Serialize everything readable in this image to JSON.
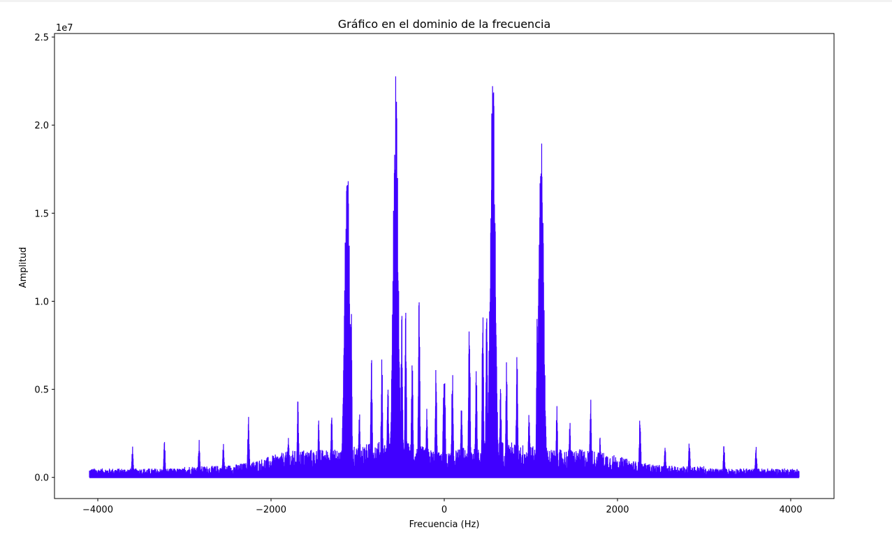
{
  "chart_data": {
    "type": "line",
    "title": "Gráfico en el dominio de la frecuencia",
    "xlabel": "Frecuencia (Hz)",
    "ylabel": "Amplitud",
    "y_offset_text": "1e7",
    "xlim": [
      -4500,
      4500
    ],
    "ylim": [
      -1200000,
      25200000
    ],
    "x_ticks": [
      -4000,
      -2000,
      0,
      2000,
      4000
    ],
    "x_tick_labels": [
      "−4000",
      "−2000",
      "0",
      "2000",
      "4000"
    ],
    "y_ticks": [
      0,
      5000000,
      10000000,
      15000000,
      20000000,
      25000000
    ],
    "y_tick_labels": [
      "0.0",
      "0.5",
      "1.0",
      "1.5",
      "2.0",
      "2.5"
    ],
    "grid": false,
    "line_color": "#4000ff",
    "x_range": [
      -4096,
      4096
    ],
    "series": [
      {
        "peaks": [
          {
            "x": 560,
            "y": 24000000
          },
          {
            "x": 1120,
            "y": 19700000
          },
          {
            "x": 1075,
            "y": 10400000
          },
          {
            "x": 290,
            "y": 10500000
          },
          {
            "x": 445,
            "y": 10000000
          },
          {
            "x": 490,
            "y": 9900000
          },
          {
            "x": 840,
            "y": 7300000
          },
          {
            "x": 720,
            "y": 6900000
          },
          {
            "x": 95,
            "y": 6600000
          },
          {
            "x": 5,
            "y": 6000000
          },
          {
            "x": 1690,
            "y": 4600000
          },
          {
            "x": 1140,
            "y": 4200000
          },
          {
            "x": 2260,
            "y": 3800000
          },
          {
            "x": 1800,
            "y": 2500000
          },
          {
            "x": 2830,
            "y": 2200000
          },
          {
            "x": 3230,
            "y": 2100000
          },
          {
            "x": 3600,
            "y": 1800000
          },
          {
            "x": 2550,
            "y": 2000000
          },
          {
            "x": 1450,
            "y": 3300000
          },
          {
            "x": 1300,
            "y": 4100000
          },
          {
            "x": 980,
            "y": 4000000
          },
          {
            "x": 650,
            "y": 5500000
          },
          {
            "x": 370,
            "y": 7500000
          },
          {
            "x": 200,
            "y": 4500000
          }
        ]
      }
    ]
  }
}
